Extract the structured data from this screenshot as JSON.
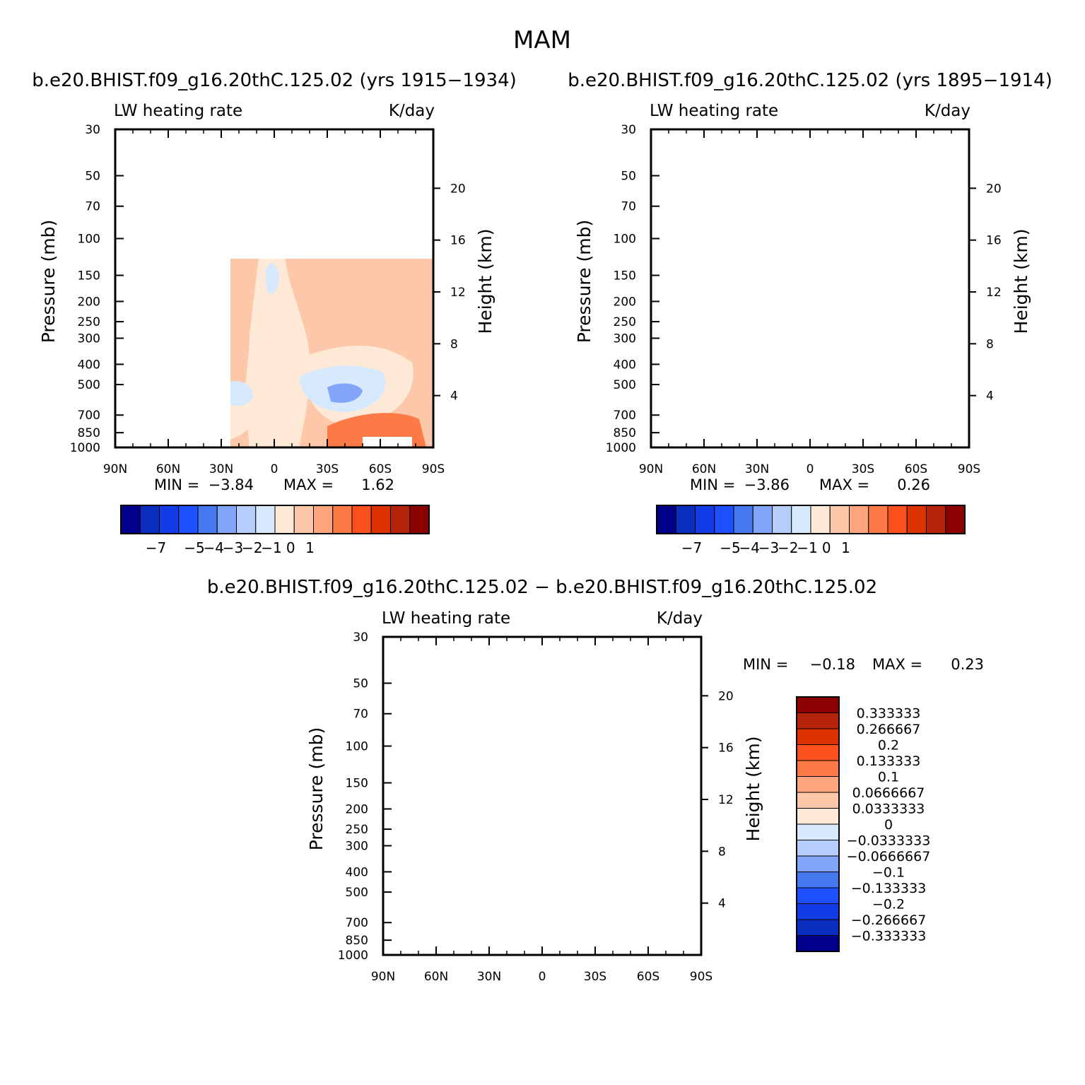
{
  "figure": {
    "title": "MAM"
  },
  "chart_data": [
    {
      "type": "heatmap",
      "title": "b.e20.BHIST.f09_g16.20thC.125.02 (yrs 1915−1934)",
      "left_label": "LW heating rate",
      "right_label": "K/day",
      "xlabel": "",
      "ylabel": "Pressure (mb)",
      "ylabel_right": "Height (km)",
      "x_ticks": [
        "90N",
        "60N",
        "30N",
        "0",
        "30S",
        "60S",
        "90S"
      ],
      "y_ticks": [
        "30",
        "50",
        "70",
        "100",
        "150",
        "200",
        "250",
        "300",
        "400",
        "500",
        "700",
        "850",
        "1000"
      ],
      "height_ticks": [
        "20",
        "16",
        "12",
        "8",
        "4"
      ],
      "min_label": "MIN =",
      "min_value": "−3.84",
      "max_label": "MAX =",
      "max_value": "1.62",
      "colorbar_labels": [
        "−7",
        "−5",
        "−4",
        "−3",
        "−2",
        "−1",
        "0",
        "1"
      ]
    },
    {
      "type": "heatmap",
      "title": "b.e20.BHIST.f09_g16.20thC.125.02 (yrs 1895−1914)",
      "left_label": "LW heating rate",
      "right_label": "K/day",
      "xlabel": "",
      "ylabel": "Pressure (mb)",
      "ylabel_right": "Height (km)",
      "x_ticks": [
        "90N",
        "60N",
        "30N",
        "0",
        "30S",
        "60S",
        "90S"
      ],
      "y_ticks": [
        "30",
        "50",
        "70",
        "100",
        "150",
        "200",
        "250",
        "300",
        "400",
        "500",
        "700",
        "850",
        "1000"
      ],
      "height_ticks": [
        "20",
        "16",
        "12",
        "8",
        "4"
      ],
      "min_label": "MIN =",
      "min_value": "−3.86",
      "max_label": "MAX =",
      "max_value": "0.26",
      "colorbar_labels": [
        "−7",
        "−5",
        "−4",
        "−3",
        "−2",
        "−1",
        "0",
        "1"
      ]
    },
    {
      "type": "heatmap",
      "title": "b.e20.BHIST.f09_g16.20thC.125.02 − b.e20.BHIST.f09_g16.20thC.125.02",
      "left_label": "LW heating rate",
      "right_label": "K/day",
      "xlabel": "",
      "ylabel": "Pressure (mb)",
      "ylabel_right": "Height (km)",
      "x_ticks": [
        "90N",
        "60N",
        "30N",
        "0",
        "30S",
        "60S",
        "90S"
      ],
      "y_ticks": [
        "30",
        "50",
        "70",
        "100",
        "150",
        "200",
        "250",
        "300",
        "400",
        "500",
        "700",
        "850",
        "1000"
      ],
      "height_ticks": [
        "20",
        "16",
        "12",
        "8",
        "4"
      ],
      "min_label": "MIN =",
      "min_value": "−0.18",
      "max_label": "MAX =",
      "max_value": "0.23",
      "colorbar_labels": [
        "0.333333",
        "0.266667",
        "0.2",
        "0.133333",
        "0.1",
        "0.0666667",
        "0.0333333",
        "0",
        "−0.0333333",
        "−0.0666667",
        "−0.1",
        "−0.133333",
        "−0.2",
        "−0.266667",
        "−0.333333"
      ]
    }
  ],
  "colors": {
    "top_scale": [
      "#00008b",
      "#0a2dbe",
      "#143ce6",
      "#1e50ff",
      "#4678f0",
      "#82a5fa",
      "#b4cdfa",
      "#d7e9fd",
      "#fde9d6",
      "#fdc7aa",
      "#fca57f",
      "#fc7a46",
      "#f9501e",
      "#dc3200",
      "#b4230a",
      "#8b0000"
    ],
    "diff_scale": [
      "#8b0000",
      "#b4230a",
      "#dc3200",
      "#f9501e",
      "#fc7a46",
      "#fca57f",
      "#fdc7aa",
      "#fde9d6",
      "#d7e9fd",
      "#b4cdfa",
      "#82a5fa",
      "#4678f0",
      "#1e50ff",
      "#143ce6",
      "#0a2dbe",
      "#00008b"
    ]
  }
}
